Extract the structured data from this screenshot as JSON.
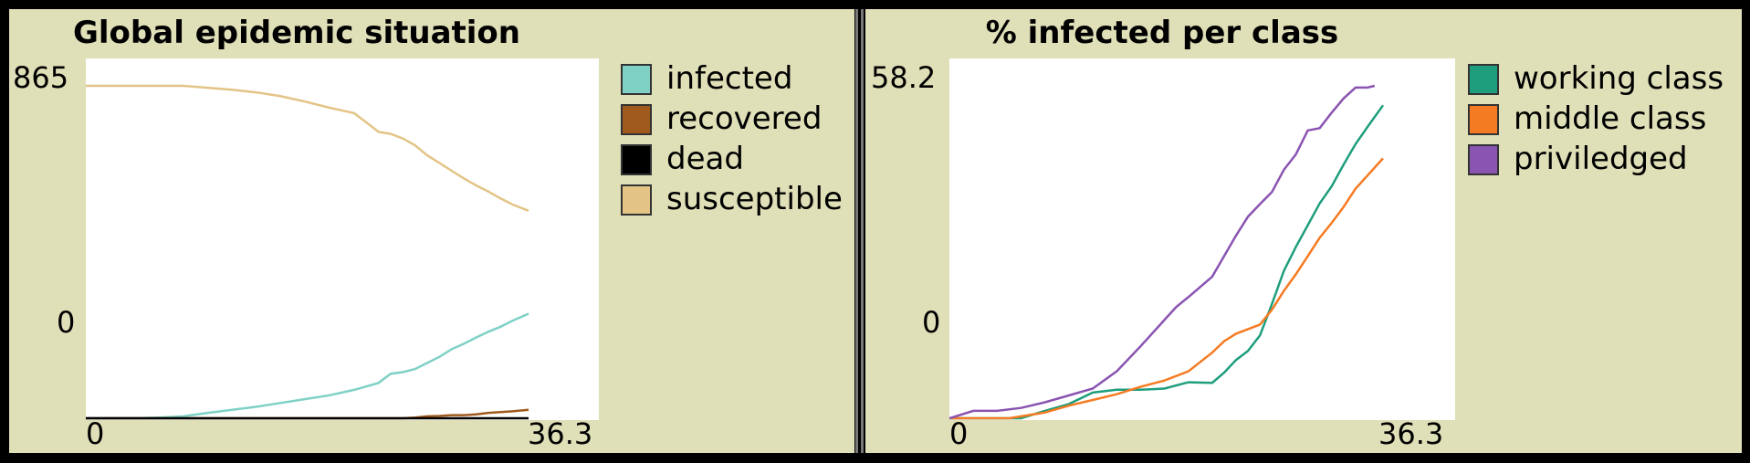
{
  "chart_data": [
    {
      "type": "line",
      "title": "Global epidemic situation",
      "xlim": [
        0,
        36.3
      ],
      "ylim": [
        0,
        865
      ],
      "x_tick_labels": [
        "0",
        "36.3"
      ],
      "y_tick_labels": [
        "0",
        "865"
      ],
      "legend_position": "right",
      "series": [
        {
          "name": "infected",
          "color": "#7fd1c6",
          "points": [
            [
              0,
              0
            ],
            [
              4,
              0
            ],
            [
              6,
              2
            ],
            [
              8,
              5
            ],
            [
              10,
              14
            ],
            [
              12,
              22
            ],
            [
              14,
              30
            ],
            [
              16,
              40
            ],
            [
              18,
              50
            ],
            [
              20,
              60
            ],
            [
              22,
              74
            ],
            [
              24,
              92
            ],
            [
              25,
              116
            ],
            [
              26,
              120
            ],
            [
              27,
              128
            ],
            [
              28,
              144
            ],
            [
              29,
              160
            ],
            [
              30,
              180
            ],
            [
              31,
              194
            ],
            [
              32,
              210
            ],
            [
              33,
              225
            ],
            [
              34,
              238
            ],
            [
              35,
              254
            ],
            [
              36.3,
              272
            ]
          ]
        },
        {
          "name": "recovered",
          "color": "#a05a1e",
          "points": [
            [
              0,
              0
            ],
            [
              26,
              0
            ],
            [
              27,
              2
            ],
            [
              28,
              5
            ],
            [
              29,
              6
            ],
            [
              30,
              8
            ],
            [
              31,
              8
            ],
            [
              32,
              10
            ],
            [
              33,
              14
            ],
            [
              34,
              16
            ],
            [
              35,
              18
            ],
            [
              36.3,
              22
            ]
          ]
        },
        {
          "name": "dead",
          "color": "#000000",
          "points": [
            [
              0,
              0
            ],
            [
              36.3,
              0
            ]
          ]
        },
        {
          "name": "susceptible",
          "color": "#e3c486",
          "points": [
            [
              0,
              865
            ],
            [
              8,
              865
            ],
            [
              10,
              860
            ],
            [
              12,
              855
            ],
            [
              14,
              848
            ],
            [
              16,
              838
            ],
            [
              18,
              824
            ],
            [
              20,
              808
            ],
            [
              22,
              794
            ],
            [
              23,
              770
            ],
            [
              24,
              745
            ],
            [
              25,
              740
            ],
            [
              26,
              728
            ],
            [
              27,
              710
            ],
            [
              28,
              684
            ],
            [
              29,
              664
            ],
            [
              30,
              644
            ],
            [
              31,
              624
            ],
            [
              32,
              606
            ],
            [
              33,
              590
            ],
            [
              34,
              572
            ],
            [
              35,
              556
            ],
            [
              36.3,
              540
            ]
          ]
        }
      ]
    },
    {
      "type": "line",
      "title": "% infected per class",
      "xlim": [
        0,
        36.3
      ],
      "ylim": [
        0,
        58.2
      ],
      "x_tick_labels": [
        "0",
        "36.3"
      ],
      "y_tick_labels": [
        "0",
        "58.2"
      ],
      "legend_position": "right",
      "series": [
        {
          "name": "working class",
          "color": "#1f9e7d",
          "points": [
            [
              0,
              0
            ],
            [
              6,
              0
            ],
            [
              8,
              1.3
            ],
            [
              10,
              2.5
            ],
            [
              12,
              4.5
            ],
            [
              14,
              5
            ],
            [
              16,
              5
            ],
            [
              18,
              5.2
            ],
            [
              20,
              6.3
            ],
            [
              22,
              6.2
            ],
            [
              23,
              8
            ],
            [
              24,
              10.2
            ],
            [
              25,
              11.8
            ],
            [
              26,
              14.5
            ],
            [
              27,
              20
            ],
            [
              28,
              25.8
            ],
            [
              29,
              30
            ],
            [
              30,
              33.8
            ],
            [
              31,
              37.6
            ],
            [
              32,
              40.6
            ],
            [
              33,
              44.4
            ],
            [
              34,
              48
            ],
            [
              35,
              51
            ],
            [
              36.3,
              54.8
            ]
          ]
        },
        {
          "name": "middle class",
          "color": "#f57b23",
          "points": [
            [
              0,
              0
            ],
            [
              5,
              0
            ],
            [
              8,
              1
            ],
            [
              10,
              2.2
            ],
            [
              12,
              3.2
            ],
            [
              14,
              4.2
            ],
            [
              16,
              5.5
            ],
            [
              18,
              6.6
            ],
            [
              20,
              8.2
            ],
            [
              22,
              11.5
            ],
            [
              23,
              13.5
            ],
            [
              24,
              14.8
            ],
            [
              25,
              15.6
            ],
            [
              26,
              16.4
            ],
            [
              27,
              19
            ],
            [
              28,
              22.3
            ],
            [
              29,
              25.2
            ],
            [
              30,
              28.4
            ],
            [
              31,
              31.6
            ],
            [
              32,
              34.2
            ],
            [
              33,
              37
            ],
            [
              34,
              40.2
            ],
            [
              35,
              42.5
            ],
            [
              36.3,
              45.5
            ]
          ]
        },
        {
          "name": "priviledged",
          "color": "#8a54b1",
          "points": [
            [
              0,
              0
            ],
            [
              2,
              1.3
            ],
            [
              4,
              1.3
            ],
            [
              6,
              1.8
            ],
            [
              8,
              2.8
            ],
            [
              10,
              4
            ],
            [
              12,
              5.2
            ],
            [
              14,
              8.2
            ],
            [
              16,
              12.6
            ],
            [
              18,
              17.2
            ],
            [
              19,
              19.5
            ],
            [
              20,
              21.2
            ],
            [
              22,
              24.8
            ],
            [
              24,
              32
            ],
            [
              25,
              35.3
            ],
            [
              26,
              37.5
            ],
            [
              27,
              39.6
            ],
            [
              28,
              43.5
            ],
            [
              29,
              46.2
            ],
            [
              30,
              50.4
            ],
            [
              31,
              50.8
            ],
            [
              32,
              53.5
            ],
            [
              33,
              56
            ],
            [
              34,
              57.9
            ],
            [
              35,
              57.9
            ],
            [
              35.6,
              58.2
            ]
          ]
        }
      ]
    }
  ]
}
